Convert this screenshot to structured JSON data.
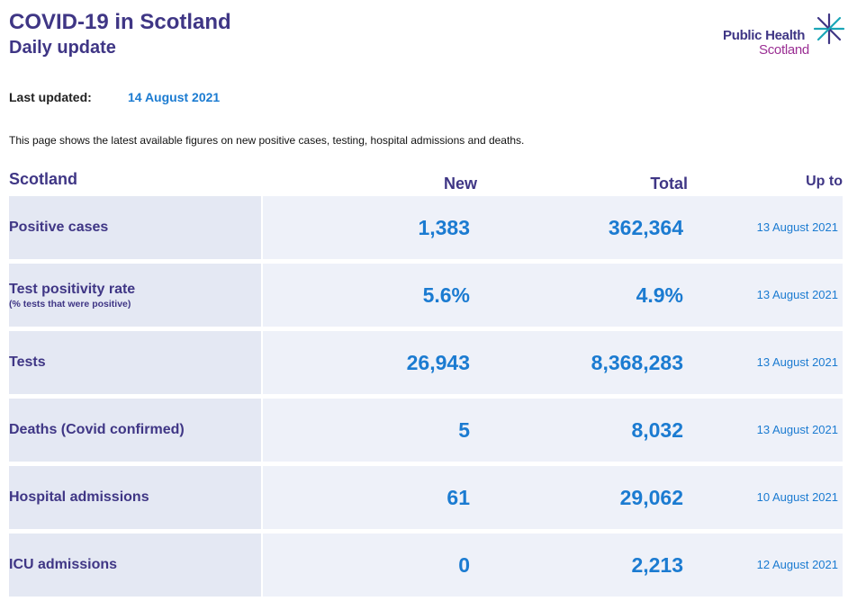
{
  "header": {
    "title": "COVID-19 in Scotland",
    "subtitle": "Daily update"
  },
  "logo": {
    "line1": "Public Health",
    "line2": "Scotland",
    "icon": "star-burst-icon"
  },
  "last_updated": {
    "label": "Last updated:",
    "value": "14 August 2021"
  },
  "intro": "This page shows the latest available figures on new positive cases, testing, hospital admissions and deaths.",
  "table": {
    "headers": {
      "region": "Scotland",
      "new": "New",
      "total": "Total",
      "up_to": "Up to"
    },
    "rows": [
      {
        "label": "Positive cases",
        "sub": "",
        "new": "1,383",
        "total": "362,364",
        "up_to": "13 August 2021"
      },
      {
        "label": "Test positivity rate",
        "sub": "(% tests that were positive)",
        "new": "5.6%",
        "total": "4.9%",
        "up_to": "13 August 2021"
      },
      {
        "label": "Tests",
        "sub": "",
        "new": "26,943",
        "total": "8,368,283",
        "up_to": "13 August 2021"
      },
      {
        "label": "Deaths (Covid confirmed)",
        "sub": "",
        "new": "5",
        "total": "8,032",
        "up_to": "13 August 2021"
      },
      {
        "label": "Hospital admissions",
        "sub": "",
        "new": "61",
        "total": "29,062",
        "up_to": "10 August 2021"
      },
      {
        "label": "ICU admissions",
        "sub": "",
        "new": "0",
        "total": "2,213",
        "up_to": "12 August 2021"
      }
    ]
  },
  "colors": {
    "brand_purple": "#3f3685",
    "value_blue": "#1b7bd1",
    "logo_magenta": "#9b2f94",
    "logo_teal": "#1aa6b7"
  }
}
